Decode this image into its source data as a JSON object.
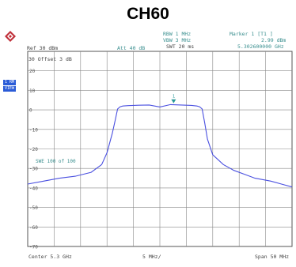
{
  "title": "CH60",
  "header": {
    "rbw": "RBW 1 MHz",
    "vbw": "VBW 3 MHz",
    "swt": "SWT 20 ms",
    "marker_label": "Marker 1 [T1 ]",
    "marker_level": "2.99 dBm",
    "marker_freq": "5.302600000 GHz",
    "ref": "Ref  30 dBm",
    "att": "Att  40 dB",
    "offset": "30 Offset  3 dB",
    "side_badge_1": "1 RM",
    "side_badge_2": "VIEW"
  },
  "footer": {
    "center": "Center 5.3 GHz",
    "per_div": "5 MHz/",
    "span": "Span 50 MHz"
  },
  "colors": {
    "trace": "#4a50e0",
    "grid": "#888888",
    "annotation": "#3a8f8f"
  },
  "chart_data": {
    "type": "line",
    "title": "CH60",
    "x_unit": "MHz offset from center",
    "xlim": [
      -25,
      25
    ],
    "ylim": [
      -70,
      30
    ],
    "y_tick_labels": [
      "20",
      "10",
      "0",
      "-10",
      "-20",
      "-30",
      "-40",
      "-50",
      "-60",
      "-70"
    ],
    "y_ticks": [
      20,
      10,
      0,
      -10,
      -20,
      -30,
      -40,
      -50,
      -60,
      -70
    ],
    "grid": true,
    "annotation": {
      "text": "SWE  100 of  100",
      "x": -23.5,
      "y": -27
    },
    "marker": {
      "label": "1",
      "x": 2.6,
      "y": 2.99
    },
    "series": [
      {
        "x": [
          -25,
          -22,
          -19,
          -16,
          -13,
          -11,
          -10,
          -9,
          -8.5,
          -8,
          -7.5,
          -7,
          -6,
          -4,
          -2,
          0,
          2,
          4,
          6,
          7,
          7.5,
          8,
          8.5,
          9,
          10,
          12,
          14,
          16,
          18,
          21,
          23,
          25
        ],
        "y": [
          -38,
          -36.5,
          -35,
          -34,
          -32,
          -28,
          -22,
          -12,
          -6,
          0.5,
          1.6,
          2,
          2.2,
          2.4,
          2.5,
          1.5,
          2.7,
          2.5,
          2.3,
          2,
          1.6,
          0.5,
          -7,
          -15,
          -23,
          -28,
          -31,
          -33,
          -35,
          -36.5,
          -38,
          -39.5
        ]
      }
    ]
  }
}
